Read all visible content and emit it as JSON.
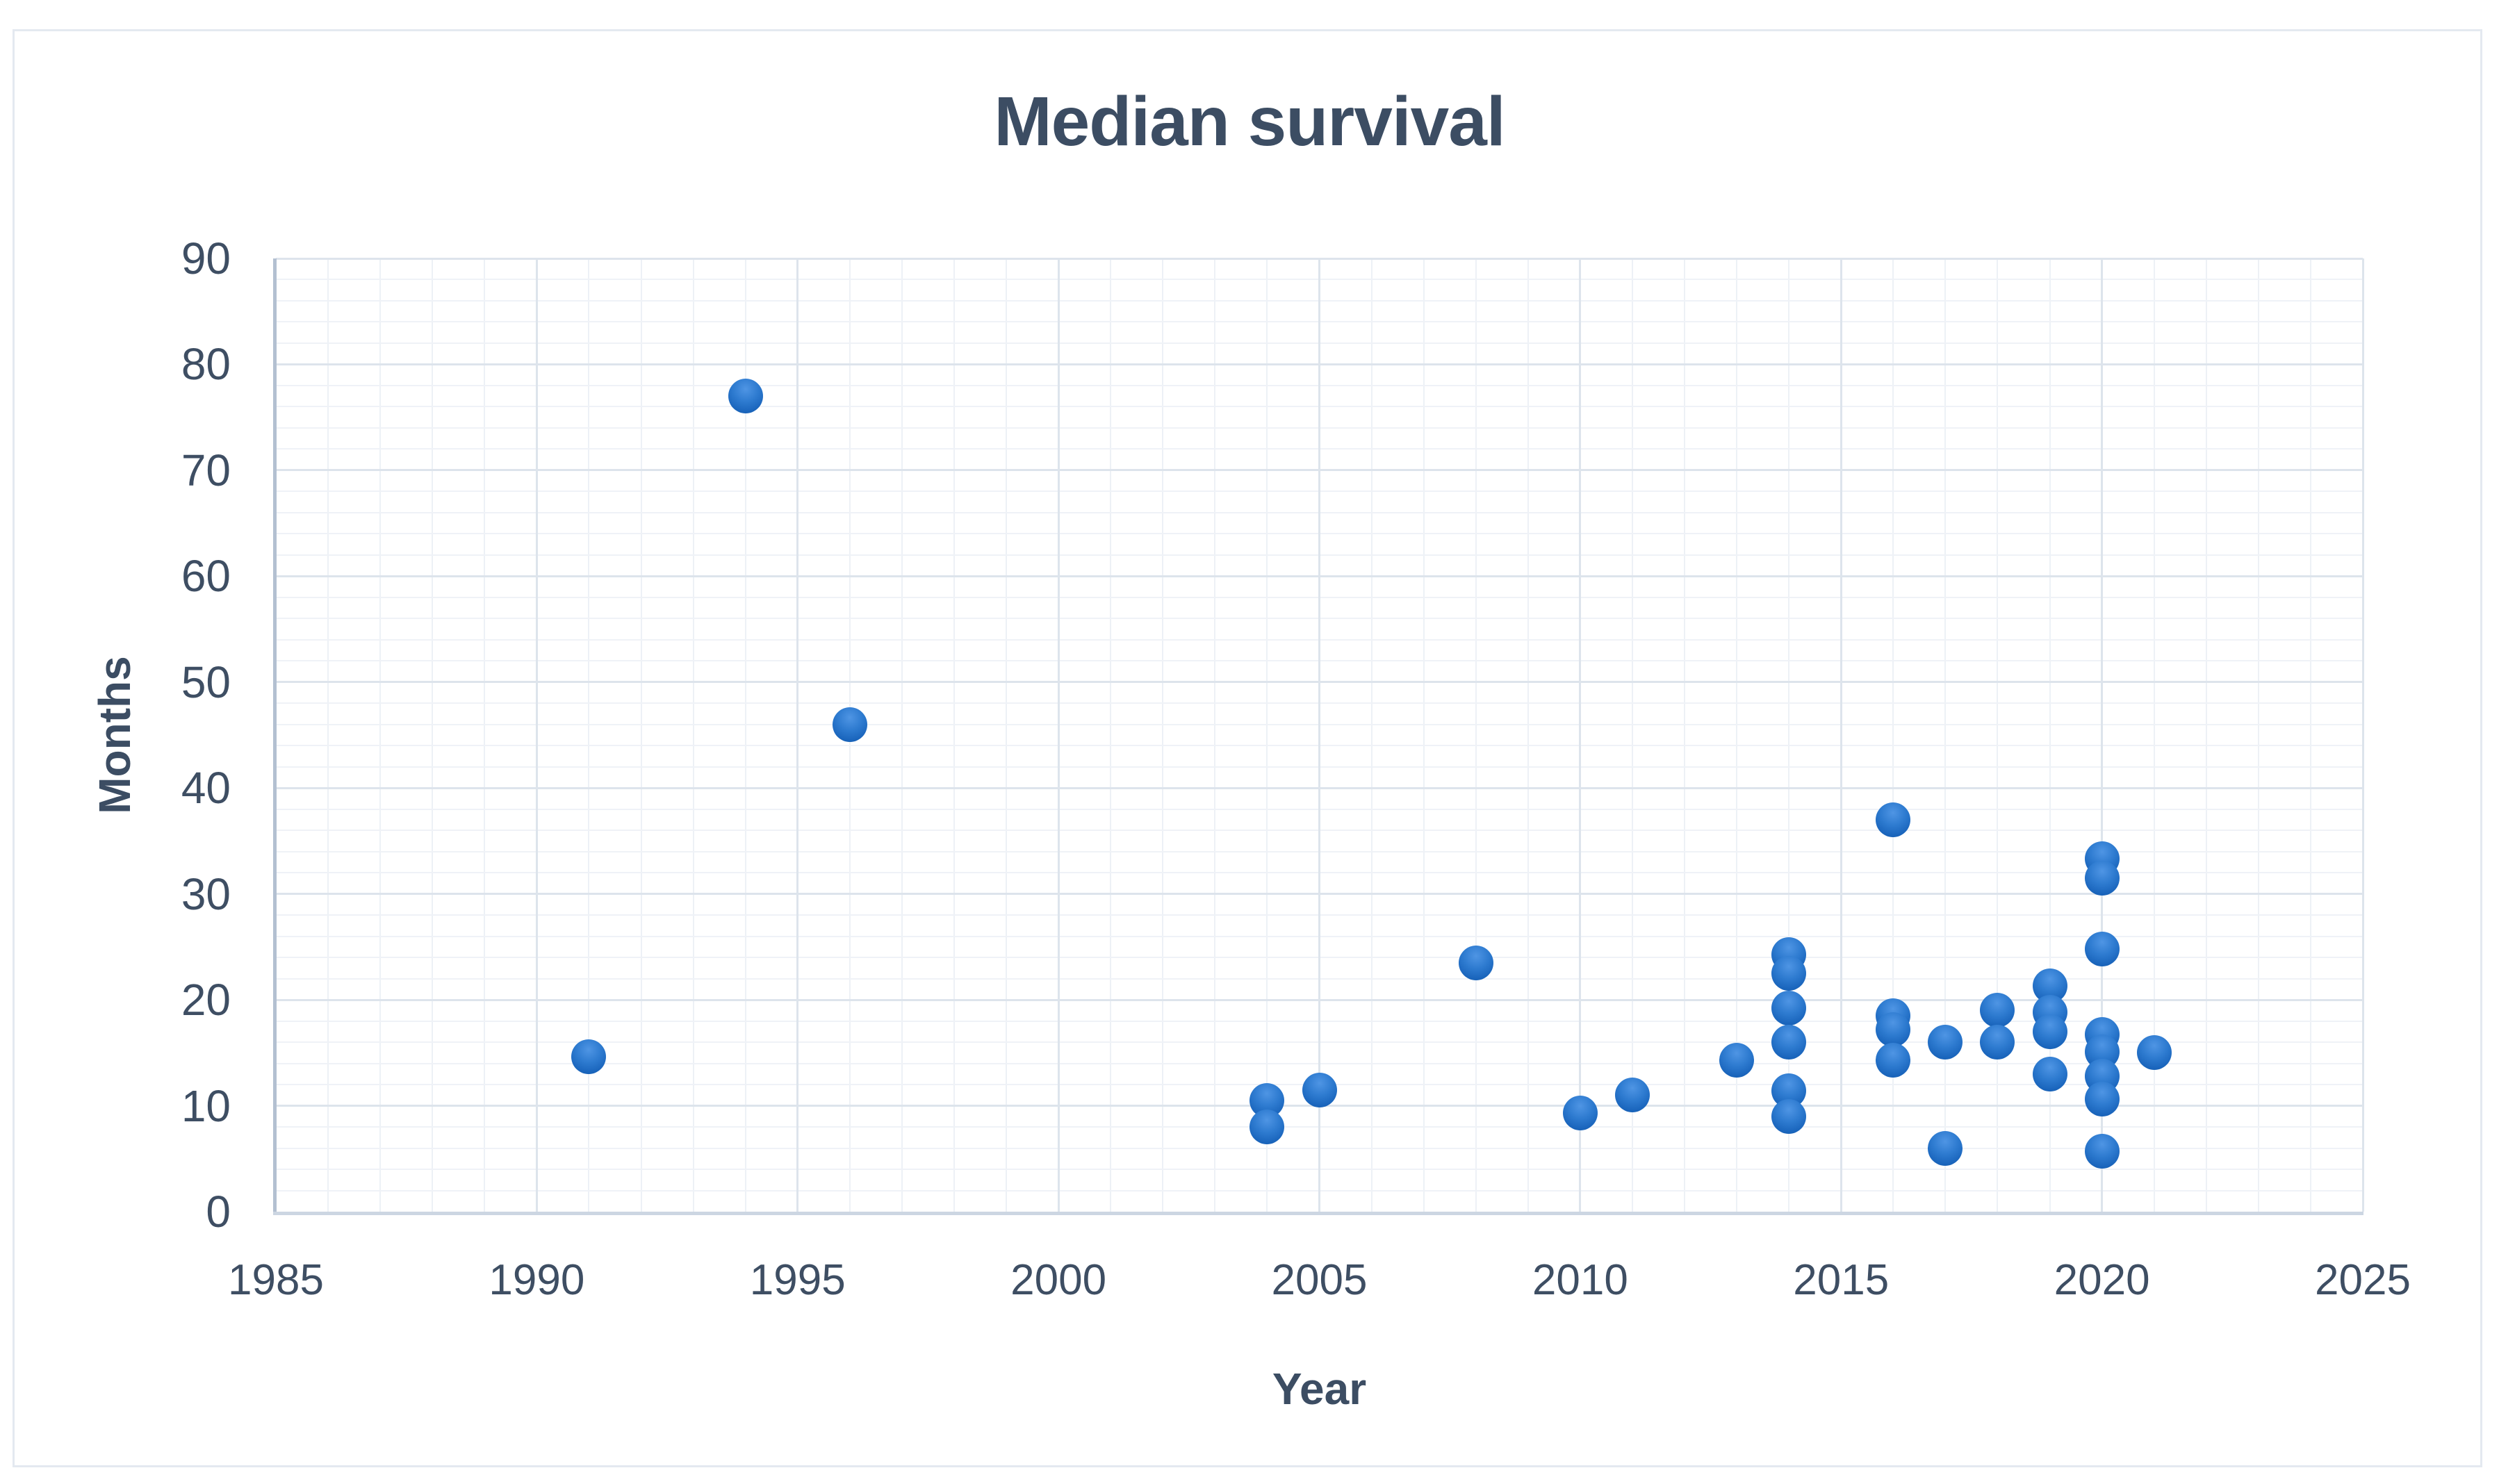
{
  "title": "Median survival",
  "chart_data": {
    "type": "scatter",
    "title": "Median survival",
    "xlabel": "Year",
    "ylabel": "Months",
    "xlim": [
      1985,
      2025
    ],
    "ylim": [
      0,
      90
    ],
    "x_major_ticks": [
      1985,
      1990,
      1995,
      2000,
      2005,
      2010,
      2015,
      2020,
      2025
    ],
    "y_major_ticks": [
      0,
      10,
      20,
      30,
      40,
      50,
      60,
      70,
      80,
      90
    ],
    "x_minor_step": 1,
    "y_minor_step": 2,
    "grid": "major and minor gridlines, light gray, plot bordered left/bottom by axis lines",
    "legend_position": "none",
    "marker_style": "round glossy blue",
    "points": [
      {
        "x": 1991,
        "y": 14.6
      },
      {
        "x": 1994,
        "y": 77
      },
      {
        "x": 1996,
        "y": 46
      },
      {
        "x": 2004,
        "y": 10.5
      },
      {
        "x": 2004,
        "y": 8
      },
      {
        "x": 2005,
        "y": 11.5
      },
      {
        "x": 2008,
        "y": 23.5
      },
      {
        "x": 2010,
        "y": 9.3
      },
      {
        "x": 2011,
        "y": 11
      },
      {
        "x": 2013,
        "y": 14.3
      },
      {
        "x": 2014,
        "y": 24.3
      },
      {
        "x": 2014,
        "y": 22.5
      },
      {
        "x": 2014,
        "y": 19.2
      },
      {
        "x": 2014,
        "y": 16
      },
      {
        "x": 2014,
        "y": 11.4
      },
      {
        "x": 2014,
        "y": 9
      },
      {
        "x": 2016,
        "y": 37
      },
      {
        "x": 2016,
        "y": 18.5
      },
      {
        "x": 2016,
        "y": 17.2
      },
      {
        "x": 2016,
        "y": 14.3
      },
      {
        "x": 2017,
        "y": 16
      },
      {
        "x": 2017,
        "y": 6
      },
      {
        "x": 2018,
        "y": 19
      },
      {
        "x": 2018,
        "y": 16
      },
      {
        "x": 2019,
        "y": 21.3
      },
      {
        "x": 2019,
        "y": 18.8
      },
      {
        "x": 2019,
        "y": 17
      },
      {
        "x": 2019,
        "y": 13
      },
      {
        "x": 2020,
        "y": 33.3
      },
      {
        "x": 2020,
        "y": 31.5
      },
      {
        "x": 2020,
        "y": 24.8
      },
      {
        "x": 2020,
        "y": 16.7
      },
      {
        "x": 2020,
        "y": 15.1
      },
      {
        "x": 2020,
        "y": 12.8
      },
      {
        "x": 2020,
        "y": 10.6
      },
      {
        "x": 2020,
        "y": 5.7
      },
      {
        "x": 2021,
        "y": 15
      }
    ]
  },
  "colors": {
    "text": "#3c4d63",
    "marker_fill": "#1f6fc8",
    "marker_highlight": "#4f95e4",
    "marker_edge": "#1158a8",
    "grid_major": "#dde4ec",
    "grid_minor": "#eff2f7",
    "axis_line_left": "#b3c0d1",
    "axis_line_bottom": "#ccd6e2",
    "frame_border": "#e4e9f0",
    "background": "#ffffff"
  }
}
